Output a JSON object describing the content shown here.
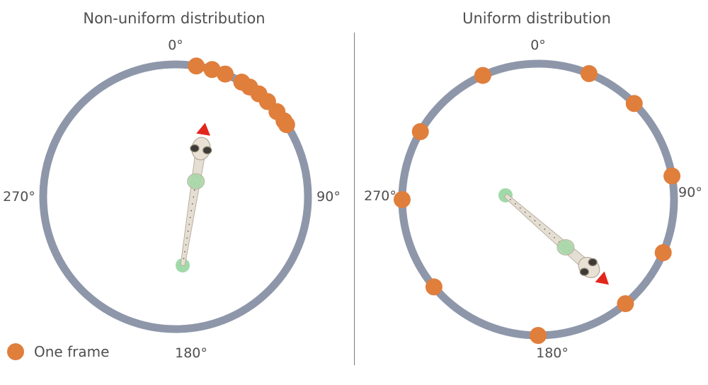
{
  "colors": {
    "ring": "#8e97aa",
    "frame_dot": "#e07e3c",
    "heading_arrow": "#e3261c",
    "start_point": "#8fd39a",
    "text": "#4f4f4f",
    "divider": "#7a7a7a"
  },
  "panels": [
    {
      "title": "Non-uniform distribution",
      "labels": {
        "top": "0°",
        "right": "90°",
        "bottom": "180°",
        "left": "270°"
      },
      "frame_angles_deg": [
        9,
        16,
        22,
        30,
        34,
        39,
        44,
        50,
        55,
        57
      ],
      "fish_heading_deg": 5
    },
    {
      "title": "Uniform distribution",
      "labels": {
        "top": "0°",
        "right": "90°",
        "bottom": "180°",
        "left": "270°"
      },
      "frame_angles_deg": [
        22,
        45,
        80,
        113,
        140,
        180,
        230,
        270,
        300,
        336
      ],
      "fish_heading_deg": 124
    }
  ],
  "legend": {
    "marker_icon": "orange-circle",
    "label": "One frame"
  }
}
